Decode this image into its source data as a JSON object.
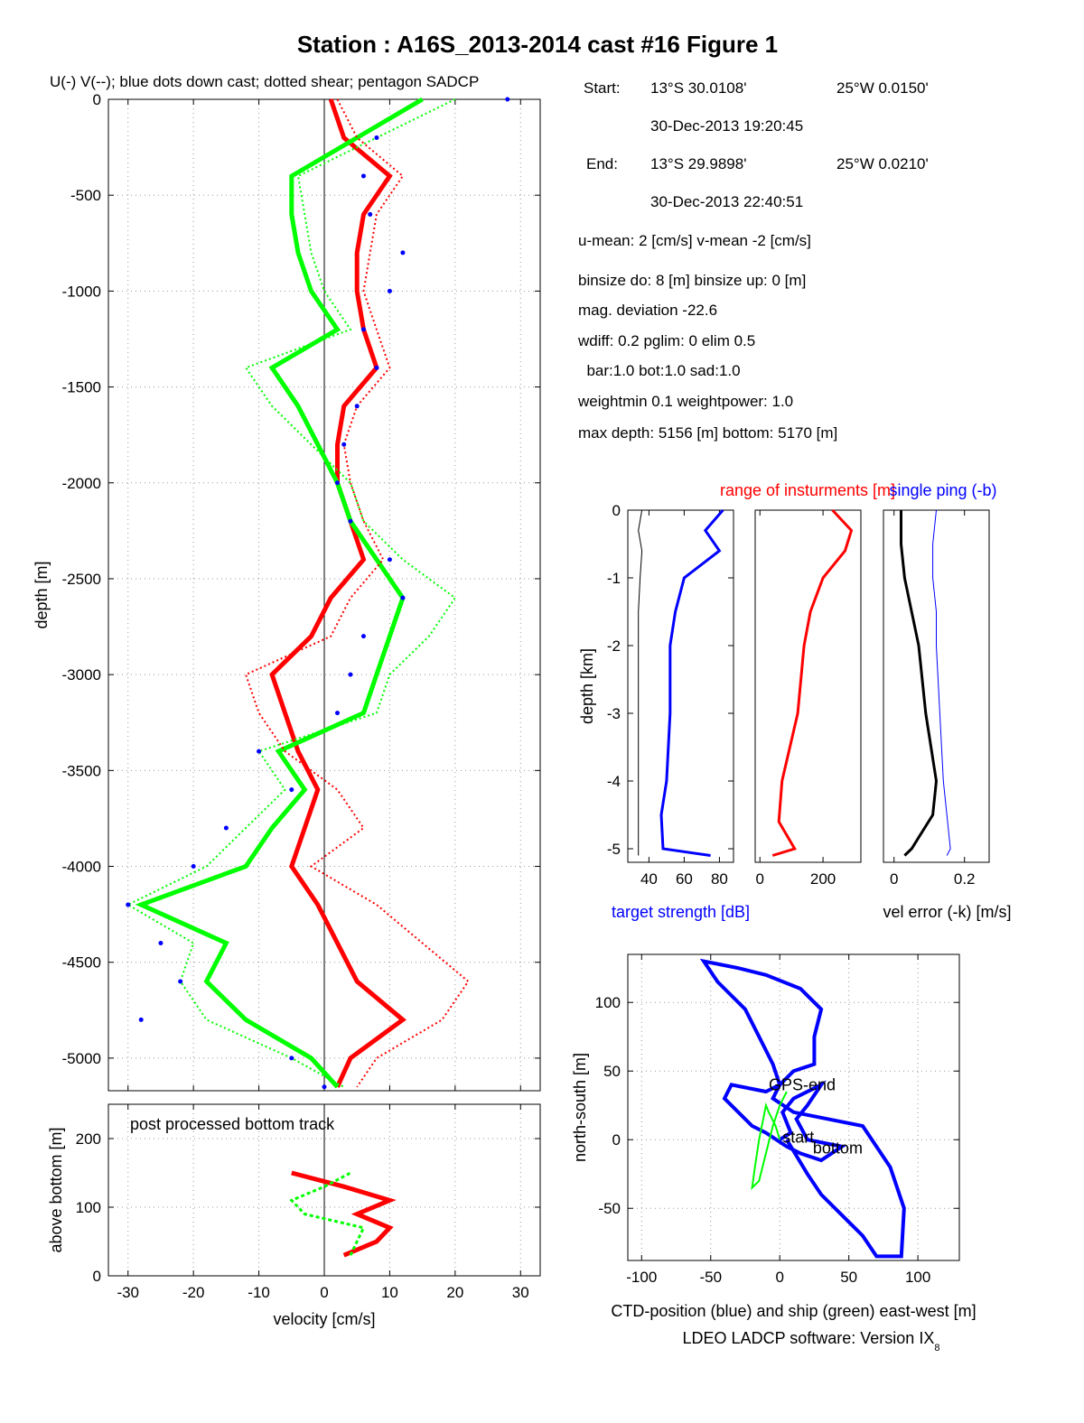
{
  "figure": {
    "title": "Station : A16S_2013-2014 cast #16  Figure 1",
    "footer": "LDEO LADCP software: Version IX",
    "footer_sub": "8"
  },
  "info": {
    "start_label": "Start:",
    "start_lat": "13°S 30.0108'",
    "start_lon": "25°W  0.0150'",
    "start_time": "30-Dec-2013 19:20:45",
    "end_label": "End:",
    "end_lat": "13°S 29.9898'",
    "end_lon": "25°W  0.0210'",
    "end_time": "30-Dec-2013 22:40:51",
    "means": "u-mean:   2 [cm/s]    v-mean  -2 [cm/s]",
    "binsize": "binsize do:  8 [m]  binsize up:   0 [m]",
    "magdev": "mag. deviation -22.6",
    "wdiff": "wdiff: 0.2  pglim: 0  elim 0.5",
    "weights": "  bar:1.0 bot:1.0 sad:1.0",
    "weightmin": "weightmin 0.1  weightpower: 1.0",
    "depths": "max depth: 5156 [m]   bottom: 5170 [m]"
  },
  "chart_data": [
    {
      "id": "velocity_profile",
      "type": "line",
      "title": "U(-) V(--); blue dots down cast; dotted shear; pentagon SADCP",
      "ylabel": "depth [m]",
      "xlim": [
        -33,
        33
      ],
      "ylim": [
        -5170,
        0
      ],
      "xticks": [
        -30,
        -20,
        -10,
        0,
        10,
        20,
        30
      ],
      "xticklabels": [
        "",
        "",
        "",
        "",
        "",
        "",
        ""
      ],
      "yticks": [
        0,
        -500,
        -1000,
        -1500,
        -2000,
        -2500,
        -3000,
        -3500,
        -4000,
        -4500,
        -5000
      ],
      "yticklabels": [
        "0",
        "-500",
        "-1000",
        "-1500",
        "-2000",
        "-2500",
        "-3000",
        "-3500",
        "-4000",
        "-4500",
        "-5000"
      ],
      "grid": true,
      "depth": [
        0,
        200,
        400,
        600,
        800,
        1000,
        1200,
        1400,
        1600,
        1800,
        2000,
        2200,
        2400,
        2600,
        2800,
        3000,
        3200,
        3400,
        3600,
        3800,
        4000,
        4200,
        4400,
        4600,
        4800,
        5000,
        5150
      ],
      "series": [
        {
          "name": "U",
          "color": "#ff0000",
          "values": [
            1,
            3,
            10,
            6,
            5,
            5,
            6,
            8,
            3,
            2,
            2,
            4,
            6,
            1,
            -2,
            -8,
            -6,
            -4,
            -1,
            -3,
            -5,
            -1,
            2,
            5,
            12,
            4,
            2
          ]
        },
        {
          "name": "V",
          "color": "#00ff00",
          "values": [
            15,
            5,
            -5,
            -5,
            -4,
            -2,
            2,
            -8,
            -4,
            -1,
            2,
            4,
            8,
            12,
            10,
            8,
            6,
            -7,
            -3,
            -8,
            -12,
            -28,
            -15,
            -18,
            -12,
            -2,
            2
          ]
        },
        {
          "name": "U shear",
          "color": "#ff0000",
          "values": [
            2,
            5,
            12,
            8,
            7,
            6,
            8,
            10,
            5,
            3,
            4,
            6,
            9,
            4,
            1,
            -12,
            -10,
            -6,
            2,
            6,
            -2,
            8,
            15,
            22,
            18,
            8,
            5
          ]
        },
        {
          "name": "V shear",
          "color": "#00ff00",
          "values": [
            20,
            8,
            -4,
            -3,
            -2,
            0,
            4,
            -12,
            -8,
            -2,
            4,
            6,
            12,
            20,
            16,
            10,
            8,
            -10,
            -6,
            -12,
            -18,
            -30,
            -20,
            -22,
            -18,
            -5,
            3
          ]
        },
        {
          "name": "blue dots down cast",
          "color": "#0000ff",
          "values": [
            28,
            8,
            6,
            7,
            12,
            10,
            6,
            8,
            5,
            3,
            2,
            4,
            10,
            12,
            6,
            4,
            2,
            -10,
            -5,
            -15,
            -20,
            -30,
            -25,
            -22,
            -28,
            -5,
            0
          ]
        }
      ]
    },
    {
      "id": "bottom_track",
      "type": "line",
      "title": "post processed bottom track",
      "xlabel": "velocity [cm/s]",
      "ylabel": "above bottom [m]",
      "xlim": [
        -33,
        33
      ],
      "ylim": [
        0,
        250
      ],
      "xticks": [
        -30,
        -20,
        -10,
        0,
        10,
        20,
        30
      ],
      "xticklabels": [
        "-30",
        "-20",
        "-10",
        "0",
        "10",
        "20",
        "30"
      ],
      "yticks": [
        0,
        100,
        200
      ],
      "yticklabels": [
        "0",
        "100",
        "200"
      ],
      "grid": true,
      "height": [
        30,
        50,
        70,
        90,
        110,
        130,
        150
      ],
      "series": [
        {
          "name": "U",
          "color": "#ff0000",
          "values": [
            3,
            8,
            10,
            5,
            10,
            3,
            -5
          ]
        },
        {
          "name": "V",
          "color": "#00ff00",
          "values": [
            4,
            5,
            6,
            -3,
            -5,
            0,
            4
          ]
        }
      ]
    },
    {
      "id": "target_strength",
      "type": "line",
      "xlabel": "target strength [dB]",
      "ylabel": "depth [km]",
      "xlim": [
        28,
        88
      ],
      "ylim": [
        -5.2,
        0
      ],
      "xticks": [
        40,
        60,
        80
      ],
      "xticklabels": [
        "40",
        "60",
        "80"
      ],
      "yticks": [
        0,
        -1,
        -2,
        -3,
        -4,
        -5
      ],
      "yticklabels": [
        "0",
        "-1",
        "-2",
        "-3",
        "-4",
        "-5"
      ],
      "depth": [
        0,
        -0.3,
        -0.6,
        -1.0,
        -1.5,
        -2.0,
        -3.0,
        -4.0,
        -4.5,
        -5.0,
        -5.1
      ],
      "series": [
        {
          "name": "target strength",
          "color": "#0000ff",
          "values": [
            82,
            72,
            80,
            60,
            55,
            52,
            52,
            50,
            47,
            48,
            75
          ]
        },
        {
          "name": "noise",
          "color": "#000000",
          "values": [
            36,
            34,
            36,
            35,
            34,
            34,
            34,
            34,
            34,
            34,
            34
          ]
        }
      ]
    },
    {
      "id": "instrument_range",
      "type": "line",
      "title": "range of insturments [m]",
      "xlim": [
        -15,
        320
      ],
      "ylim": [
        -5.2,
        0
      ],
      "xticks": [
        0,
        200
      ],
      "xticklabels": [
        "0",
        "200"
      ],
      "depth": [
        0,
        -0.3,
        -0.6,
        -1.0,
        -1.5,
        -2.0,
        -3.0,
        -4.0,
        -4.6,
        -5.0,
        -5.1
      ],
      "series": [
        {
          "name": "range",
          "color": "#ff0000",
          "values": [
            230,
            290,
            270,
            200,
            160,
            140,
            120,
            70,
            60,
            110,
            40
          ]
        }
      ]
    },
    {
      "id": "vel_error",
      "type": "line",
      "title": "single ping (-b)",
      "xlabel": "vel error (-k) [m/s]",
      "xlim": [
        -0.03,
        0.27
      ],
      "ylim": [
        -5.2,
        0
      ],
      "xticks": [
        0,
        0.2
      ],
      "xticklabels": [
        "0",
        "0.2"
      ],
      "depth": [
        0,
        -0.5,
        -1.0,
        -1.5,
        -2.0,
        -3.0,
        -4.0,
        -4.5,
        -5.0,
        -5.1
      ],
      "series": [
        {
          "name": "vel error",
          "color": "#000000",
          "values": [
            0.02,
            0.02,
            0.03,
            0.05,
            0.07,
            0.09,
            0.12,
            0.11,
            0.05,
            0.03
          ]
        },
        {
          "name": "single ping",
          "color": "#0000ff",
          "values": [
            0.12,
            0.11,
            0.11,
            0.12,
            0.12,
            0.13,
            0.14,
            0.15,
            0.16,
            0.15
          ]
        }
      ]
    },
    {
      "id": "position",
      "type": "line",
      "xlabel": "CTD-position (blue) and ship (green) east-west [m]",
      "ylabel": "north-south [m]",
      "xlim": [
        -110,
        130
      ],
      "ylim": [
        -88,
        135
      ],
      "xticks": [
        -100,
        -50,
        0,
        50,
        100
      ],
      "xticklabels": [
        "-100",
        "-50",
        "0",
        "50",
        "100"
      ],
      "yticks": [
        100,
        50,
        0,
        -50
      ],
      "yticklabels": [
        "100",
        "50",
        "0",
        "-50"
      ],
      "grid": true,
      "annotations": [
        {
          "text": "GPS-end",
          "x": -8,
          "y": 36
        },
        {
          "text": "start",
          "x": 2,
          "y": -2
        },
        {
          "text": "bottom",
          "x": 24,
          "y": -10
        }
      ],
      "series": [
        {
          "name": "CTD",
          "color": "#0000ff",
          "x": [
            0,
            8,
            2,
            10,
            30,
            20,
            12,
            20,
            45,
            30,
            15,
            5,
            -10,
            -20,
            -40,
            -35,
            -10,
            0,
            -5,
            -25,
            -45,
            -55,
            -45,
            -30,
            -10,
            15,
            30,
            25,
            25,
            10,
            0,
            -5,
            10,
            60,
            80,
            90,
            88,
            70,
            60,
            50,
            30,
            20,
            5
          ],
          "y": [
            0,
            5,
            20,
            30,
            40,
            25,
            15,
            0,
            -5,
            -15,
            -10,
            -5,
            5,
            10,
            30,
            40,
            35,
            40,
            55,
            95,
            115,
            130,
            128,
            125,
            120,
            110,
            95,
            75,
            55,
            50,
            40,
            30,
            20,
            10,
            -20,
            -50,
            -85,
            -85,
            -70,
            -60,
            -40,
            -25,
            0
          ]
        },
        {
          "name": "ship",
          "color": "#00ff00",
          "x": [
            0,
            -3,
            -8,
            -10,
            -12,
            -15,
            -18,
            -20,
            -15,
            -10,
            -5,
            0,
            5
          ],
          "y": [
            0,
            10,
            20,
            25,
            15,
            0,
            -20,
            -35,
            -30,
            -10,
            10,
            25,
            35
          ]
        }
      ]
    }
  ]
}
